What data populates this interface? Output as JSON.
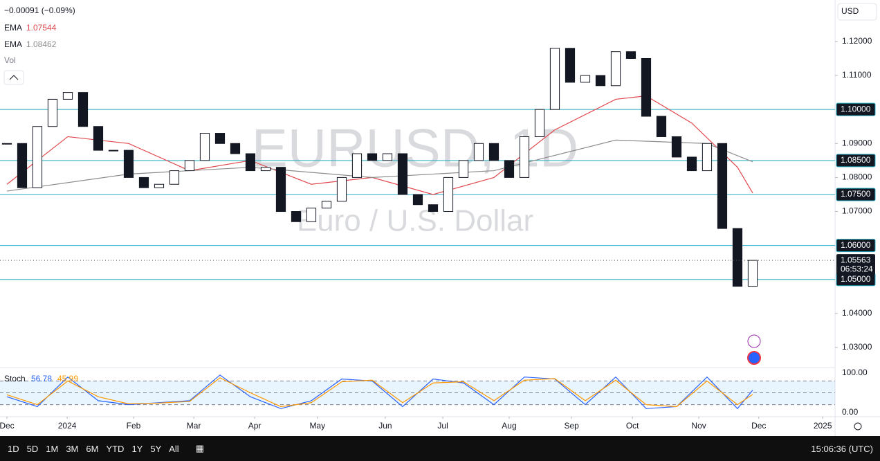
{
  "chart_data": {
    "type": "candlestick",
    "title": "EURUSD, 1D",
    "subtitle": "Euro / U.S. Dollar",
    "change": "−0.00091 (−0.09%)",
    "x": [
      0,
      5,
      10,
      15,
      20,
      25,
      30,
      35,
      40,
      45,
      50,
      55,
      60,
      65,
      70,
      75,
      80,
      85,
      90,
      95,
      100,
      105,
      110,
      115,
      120,
      125,
      130,
      135,
      140,
      145,
      150,
      155,
      160,
      165,
      170,
      175,
      180,
      185,
      190,
      195,
      200,
      205,
      210,
      215,
      220,
      225,
      230,
      235,
      240,
      245
    ],
    "values": [
      1.09,
      1.077,
      1.095,
      1.103,
      1.105,
      1.095,
      1.088,
      1.088,
      1.08,
      1.077,
      1.078,
      1.082,
      1.085,
      1.093,
      1.09,
      1.087,
      1.082,
      1.083,
      1.07,
      1.067,
      1.071,
      1.073,
      1.08,
      1.087,
      1.085,
      1.087,
      1.075,
      1.072,
      1.07,
      1.08,
      1.085,
      1.09,
      1.085,
      1.08,
      1.092,
      1.1,
      1.118,
      1.108,
      1.11,
      1.107,
      1.117,
      1.115,
      1.098,
      1.092,
      1.086,
      1.082,
      1.09,
      1.065,
      1.048,
      1.05563
    ],
    "series": [
      {
        "name": "EMA",
        "color": "#e0474c",
        "x": [
          0,
          20,
          40,
          60,
          80,
          100,
          120,
          140,
          160,
          180,
          200,
          210,
          225,
          240,
          245
        ],
        "values": [
          1.078,
          1.092,
          1.09,
          1.082,
          1.085,
          1.078,
          1.08,
          1.075,
          1.08,
          1.094,
          1.103,
          1.104,
          1.096,
          1.083,
          1.07544
        ]
      },
      {
        "name": "EMA",
        "color": "#8c8c8c",
        "x": [
          0,
          40,
          80,
          120,
          160,
          200,
          230,
          245
        ],
        "values": [
          1.076,
          1.081,
          1.083,
          1.08,
          1.082,
          1.091,
          1.09,
          1.08462
        ]
      }
    ],
    "levels": [
      {
        "value": 1.1,
        "label": "1.10000"
      },
      {
        "value": 1.085,
        "label": "1.08500"
      },
      {
        "value": 1.075,
        "label": "1.07500"
      },
      {
        "value": 1.06,
        "label": "1.06000"
      },
      {
        "value": 1.05,
        "label": "1.05000"
      }
    ],
    "level_color": "#22aec4",
    "countdown": "06:53:24",
    "volume_label": "Vol",
    "currency": "USD",
    "ylim": [
      1.0243,
      1.1322
    ],
    "yticks": [
      {
        "value": 1.12,
        "label": "1.12000"
      },
      {
        "value": 1.11,
        "label": "1.11000"
      },
      {
        "value": 1.09,
        "label": "1.09000"
      },
      {
        "value": 1.08,
        "label": "1.08000"
      },
      {
        "value": 1.07,
        "label": "1.07000"
      },
      {
        "value": 1.04,
        "label": "1.04000"
      },
      {
        "value": 1.03,
        "label": "1.03000"
      }
    ],
    "xlim": [
      -2.27,
      272.05
    ],
    "xticks": [
      {
        "value": 0,
        "label": "Dec"
      },
      {
        "value": 19.8,
        "label": "2024"
      },
      {
        "value": 41.6,
        "label": "Feb"
      },
      {
        "value": 61.4,
        "label": "Mar"
      },
      {
        "value": 81.4,
        "label": "Apr"
      },
      {
        "value": 102,
        "label": "May"
      },
      {
        "value": 124.3,
        "label": "Jun"
      },
      {
        "value": 143.2,
        "label": "Jul"
      },
      {
        "value": 165,
        "label": "Aug"
      },
      {
        "value": 185.5,
        "label": "Sep"
      },
      {
        "value": 205.5,
        "label": "Oct"
      },
      {
        "value": 227.3,
        "label": "Nov"
      },
      {
        "value": 247,
        "label": "Dec"
      },
      {
        "value": 268,
        "label": "2025"
      }
    ],
    "stoch": {
      "name": "Stoch",
      "ylim": [
        -7,
        114
      ],
      "yticks": [
        {
          "value": 100,
          "label": "100.00"
        },
        {
          "value": 0,
          "label": "0.00"
        }
      ],
      "bands": [
        80,
        50,
        20
      ],
      "series": [
        {
          "color": "#2962ff",
          "x": [
            0,
            10,
            20,
            30,
            40,
            50,
            60,
            70,
            80,
            90,
            100,
            110,
            120,
            130,
            140,
            150,
            160,
            170,
            180,
            190,
            200,
            210,
            220,
            230,
            240,
            245
          ],
          "values": [
            40,
            15,
            90,
            30,
            20,
            25,
            30,
            95,
            40,
            10,
            30,
            85,
            80,
            15,
            85,
            75,
            20,
            90,
            85,
            20,
            90,
            10,
            15,
            90,
            10,
            56.78
          ]
        },
        {
          "color": "#ff9800",
          "x": [
            0,
            10,
            20,
            30,
            40,
            50,
            60,
            70,
            80,
            90,
            100,
            110,
            120,
            130,
            140,
            150,
            160,
            170,
            180,
            190,
            200,
            210,
            220,
            230,
            240,
            245
          ],
          "values": [
            45,
            20,
            80,
            40,
            22,
            24,
            28,
            88,
            50,
            15,
            25,
            78,
            82,
            25,
            75,
            78,
            30,
            82,
            86,
            30,
            82,
            20,
            15,
            80,
            20,
            45.99
          ]
        }
      ]
    }
  },
  "ui": {
    "timeframes": [
      "1D",
      "5D",
      "1M",
      "3M",
      "6M",
      "YTD",
      "1Y",
      "5Y",
      "All"
    ],
    "clock": "15:06:36 (UTC)"
  }
}
